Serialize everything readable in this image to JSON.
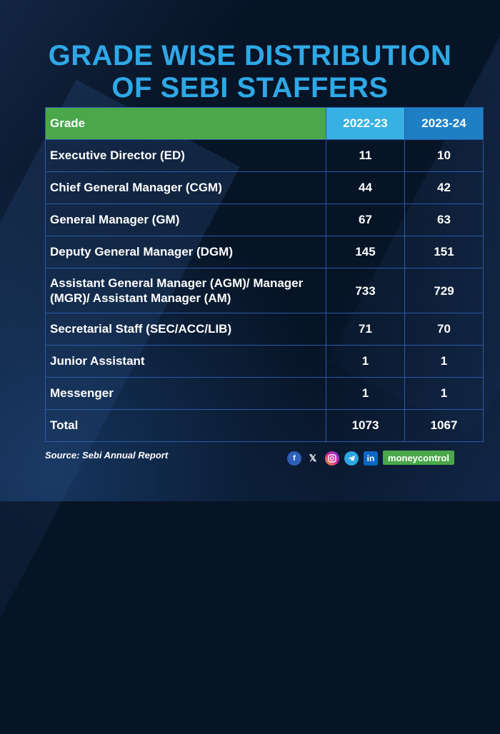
{
  "title": {
    "line1": "GRADE WISE DISTRIBUTION",
    "line2": "OF SEBI STAFFERS"
  },
  "table": {
    "headers": [
      "Grade",
      "2022-23",
      "2023-24"
    ],
    "rows": [
      {
        "grade": "Executive Director (ED)",
        "y2022_23": "11",
        "y2023_24": "10"
      },
      {
        "grade": "Chief General Manager (CGM)",
        "y2022_23": "44",
        "y2023_24": "42"
      },
      {
        "grade": "General Manager (GM)",
        "y2022_23": "67",
        "y2023_24": "63"
      },
      {
        "grade": "Deputy General Manager (DGM)",
        "y2022_23": "145",
        "y2023_24": "151"
      },
      {
        "grade": "Assistant General Manager (AGM)/ Manager (MGR)/ Assistant Manager (AM)",
        "y2022_23": "733",
        "y2023_24": "729"
      },
      {
        "grade": "Secretarial Staff (SEC/ACC/LIB)",
        "y2022_23": "71",
        "y2023_24": "70"
      },
      {
        "grade": "Junior Assistant",
        "y2022_23": "1",
        "y2023_24": "1"
      },
      {
        "grade": "Messenger",
        "y2022_23": "1",
        "y2023_24": "1"
      },
      {
        "grade": "Total",
        "y2022_23": "1073",
        "y2023_24": "1067"
      }
    ]
  },
  "chart_data": {
    "type": "table",
    "title": "GRADE WISE DISTRIBUTION OF SEBI STAFFERS",
    "columns": [
      "Grade",
      "2022-23",
      "2023-24"
    ],
    "categories": [
      "Executive Director (ED)",
      "Chief General Manager (CGM)",
      "General Manager (GM)",
      "Deputy General Manager (DGM)",
      "Assistant General Manager (AGM)/ Manager (MGR)/ Assistant Manager (AM)",
      "Secretarial Staff (SEC/ACC/LIB)",
      "Junior Assistant",
      "Messenger",
      "Total"
    ],
    "series": [
      {
        "name": "2022-23",
        "values": [
          11,
          44,
          67,
          145,
          733,
          71,
          1,
          1,
          1073
        ]
      },
      {
        "name": "2023-24",
        "values": [
          10,
          42,
          63,
          151,
          729,
          70,
          1,
          1,
          1067
        ]
      }
    ]
  },
  "footer": {
    "source": "Source: Sebi Annual Report",
    "icons": [
      "facebook-icon",
      "x-icon",
      "instagram-icon",
      "telegram-icon",
      "linkedin-icon"
    ],
    "brand": "moneycontrol"
  },
  "colors": {
    "title": "#2fa8e6",
    "header_grade": "#4aa84a",
    "header_2022_23": "#37b0e3",
    "header_2023_24": "#1e7fc4",
    "background": "#071426"
  }
}
